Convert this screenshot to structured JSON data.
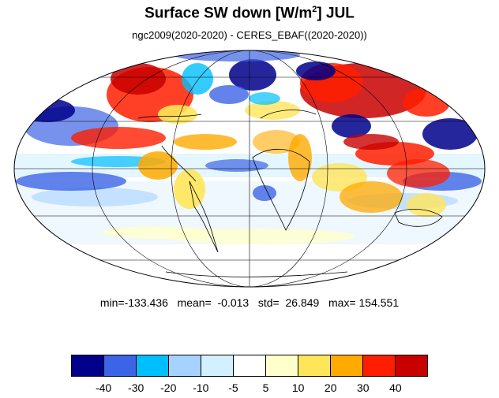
{
  "title": {
    "prefix": "Surface SW down [W/m",
    "superscript": "2",
    "suffix": "]  JUL"
  },
  "subtitle": "ngc2009(2020-2020) - CERES_EBAF((2020-2020))",
  "stats": {
    "text": "min=-133.436   mean=  -0.013   std=  26.849   max= 154.551",
    "min": -133.436,
    "mean": -0.013,
    "std": 26.849,
    "max": 154.551
  },
  "map": {
    "projection": "mollweide",
    "ocean_background": "#ffffff",
    "grid_color": "#000000",
    "coastline_color": "#000000"
  },
  "colorbar": {
    "colors": [
      "#00008b",
      "#3c64e6",
      "#00bfff",
      "#a6d2ff",
      "#d2f0ff",
      "#ffffff",
      "#ffffcc",
      "#ffe55a",
      "#ffaa00",
      "#ff1e00",
      "#c80000"
    ],
    "labels": [
      "-40",
      "-30",
      "-20",
      "-10",
      "-5",
      "5",
      "10",
      "20",
      "30",
      "40"
    ]
  }
}
